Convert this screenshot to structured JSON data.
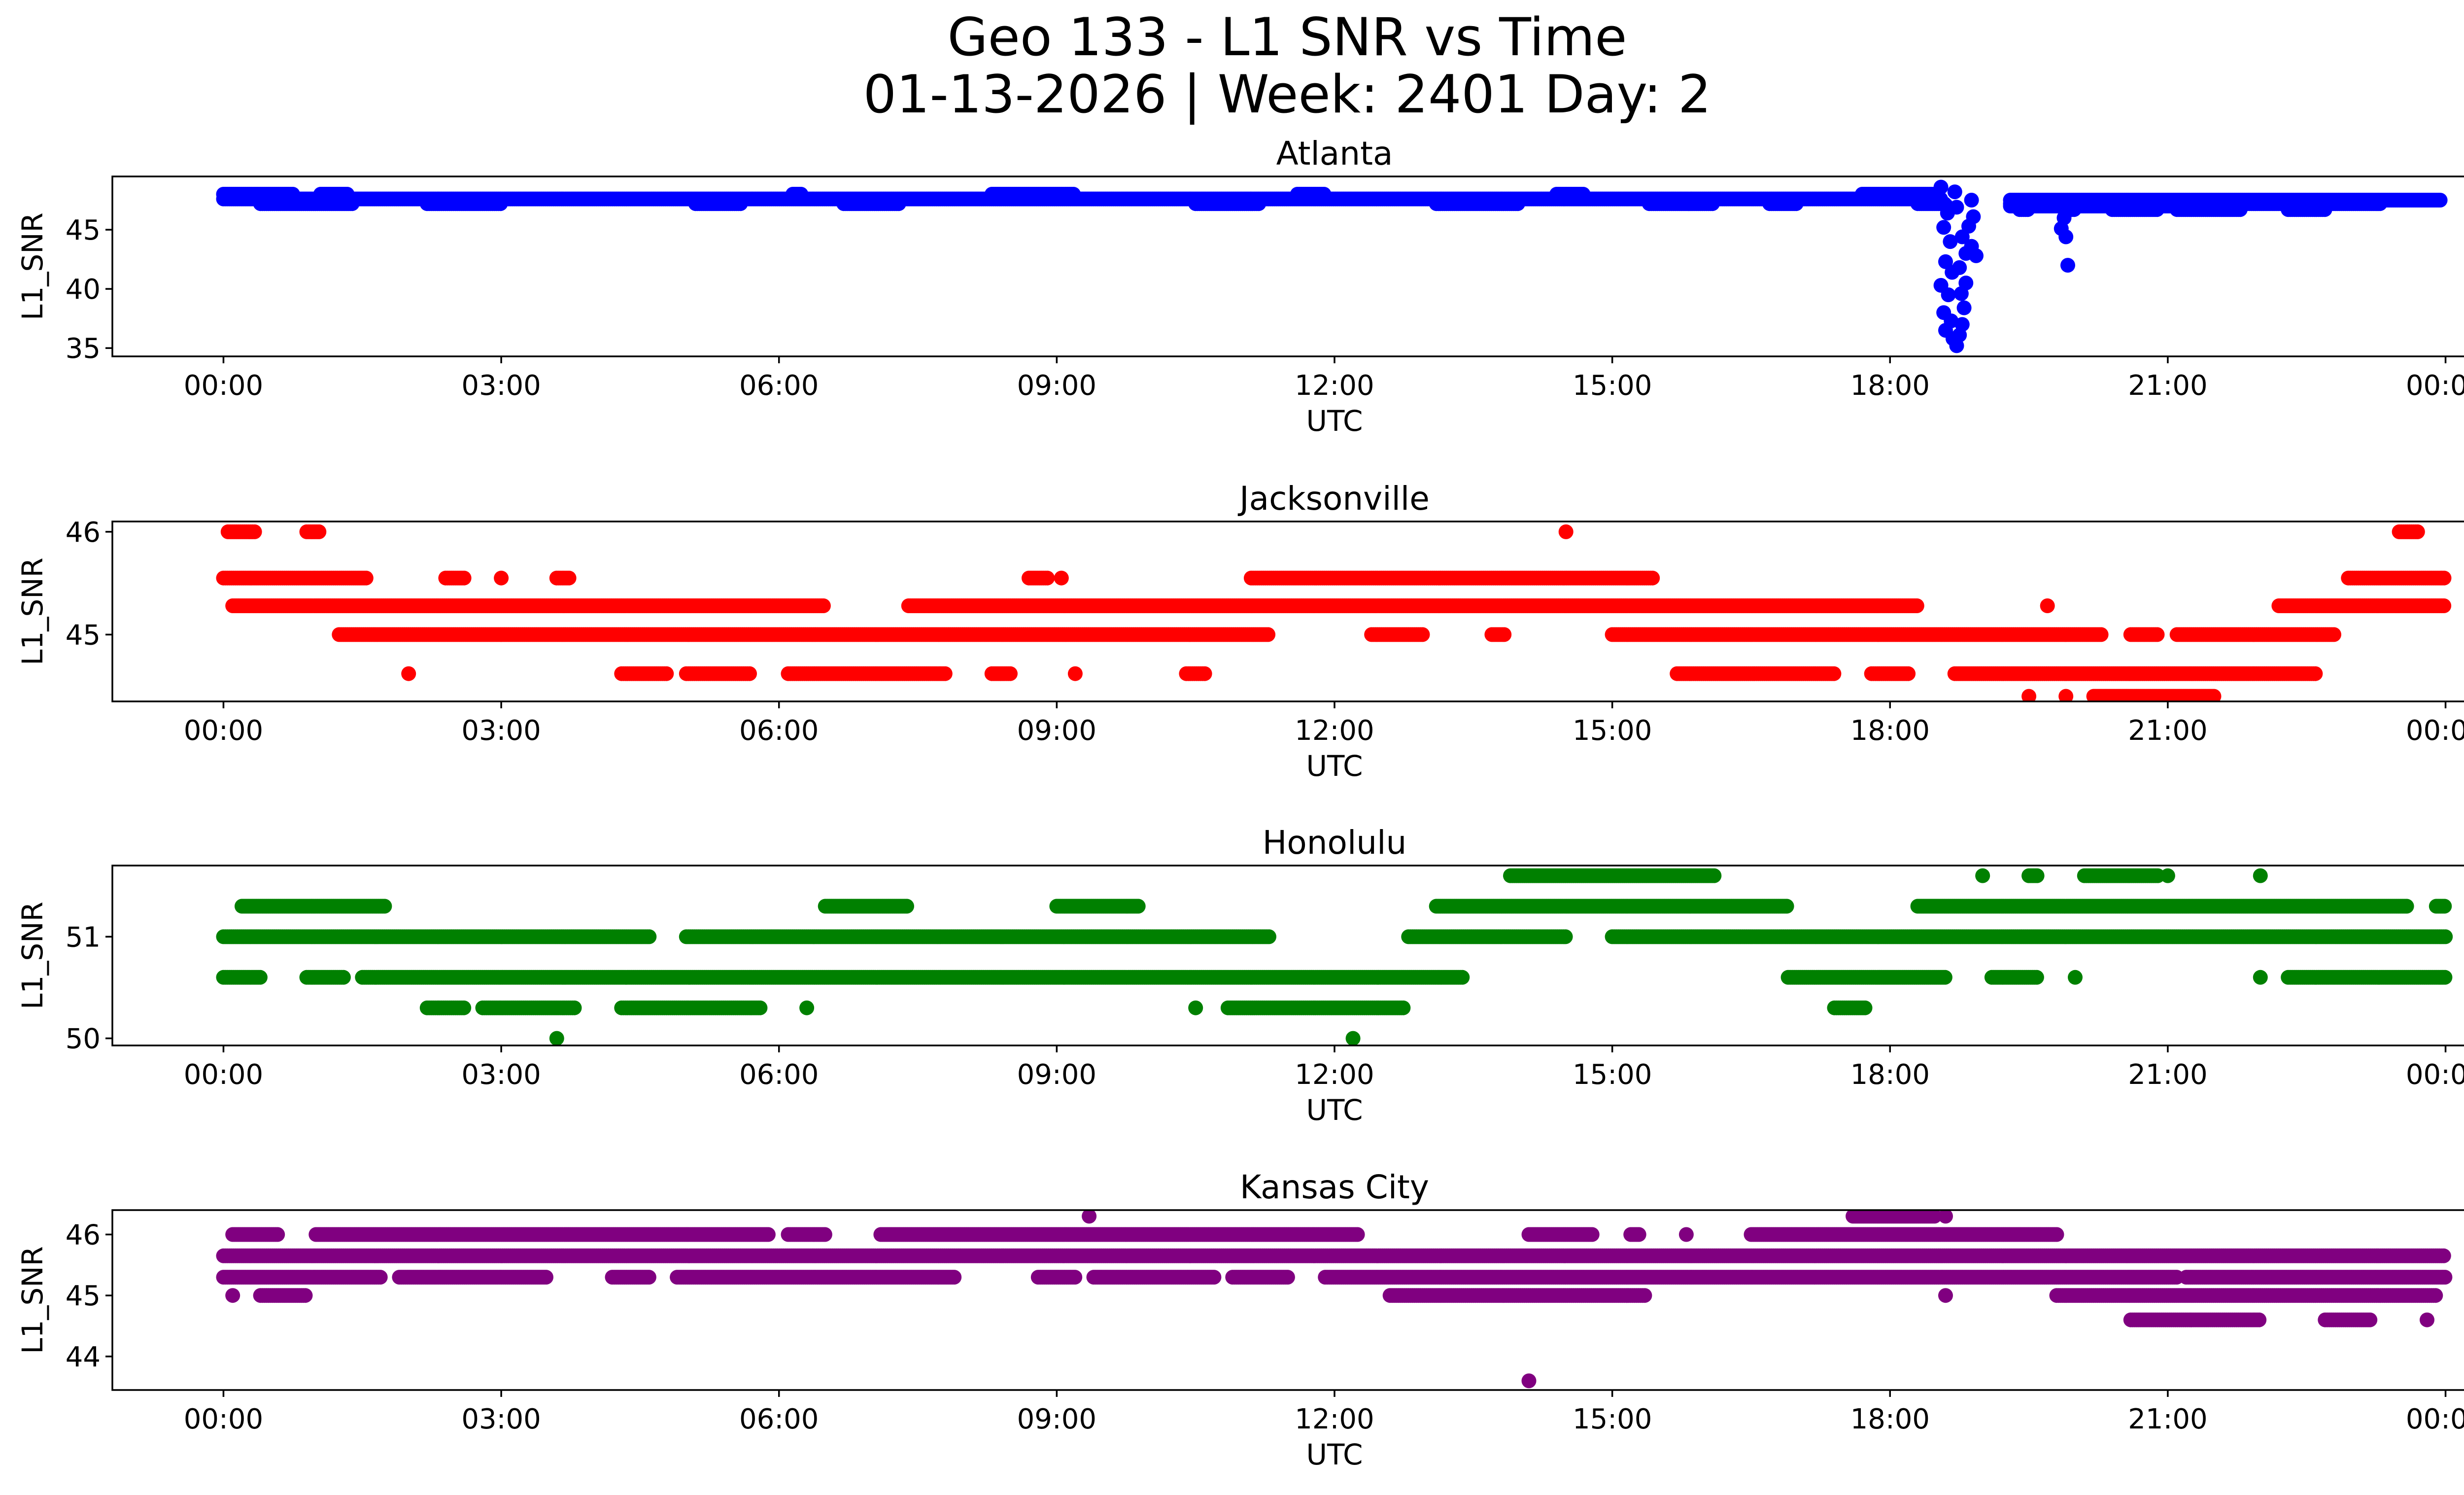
{
  "figure": {
    "title_line1": "Geo 133 - L1 SNR vs Time",
    "title_line2": "01-13-2026 | Week: 2401 Day: 2"
  },
  "chart_data": [
    {
      "type": "scatter",
      "title": "Atlanta",
      "xlabel": "UTC",
      "ylabel": "L1_SNR",
      "color": "#0000ff",
      "xlim": [
        -1.2,
        25.2
      ],
      "ylim": [
        34.3,
        49.5
      ],
      "xticks": [
        0,
        3,
        6,
        9,
        12,
        15,
        18,
        21,
        24
      ],
      "xticklabels": [
        "00:00",
        "03:00",
        "06:00",
        "09:00",
        "12:00",
        "15:00",
        "18:00",
        "21:00",
        "00:00"
      ],
      "yticks": [
        35,
        40,
        45
      ],
      "yticklabels": [
        "35",
        "40",
        "45"
      ],
      "bands": [
        {
          "value": 48.0,
          "ranges": [
            [
              0.0,
              0.75
            ],
            [
              1.05,
              1.35
            ],
            [
              6.15,
              6.25
            ],
            [
              8.3,
              9.2
            ],
            [
              11.6,
              11.9
            ],
            [
              14.4,
              14.7
            ],
            [
              17.7,
              18.5
            ]
          ]
        },
        {
          "value": 47.6,
          "ranges": [
            [
              0.0,
              18.55
            ]
          ]
        },
        {
          "value": 47.2,
          "ranges": [
            [
              0.4,
              1.4
            ],
            [
              2.2,
              3.0
            ],
            [
              5.1,
              5.6
            ],
            [
              6.7,
              7.3
            ],
            [
              10.5,
              11.2
            ],
            [
              13.1,
              14.0
            ],
            [
              15.4,
              16.1
            ],
            [
              16.7,
              17.0
            ],
            [
              18.3,
              18.6
            ],
            [
              19.3,
              21.0
            ],
            [
              21.4,
              23.3
            ]
          ]
        },
        {
          "value": 47.5,
          "ranges": [
            [
              19.3,
              23.95
            ]
          ]
        },
        {
          "value": 47.0,
          "ranges": [
            [
              19.3,
              21.8
            ]
          ]
        },
        {
          "value": 46.7,
          "ranges": [
            [
              19.4,
              19.5
            ],
            [
              19.9,
              20.0
            ],
            [
              20.4,
              20.9
            ],
            [
              21.1,
              21.8
            ],
            [
              22.3,
              22.7
            ]
          ]
        }
      ],
      "points": [
        [
          18.55,
          48.6
        ],
        [
          18.6,
          47.1
        ],
        [
          18.62,
          46.4
        ],
        [
          18.58,
          45.2
        ],
        [
          18.65,
          44.0
        ],
        [
          18.6,
          42.3
        ],
        [
          18.67,
          41.4
        ],
        [
          18.55,
          40.3
        ],
        [
          18.63,
          39.5
        ],
        [
          18.58,
          38.0
        ],
        [
          18.66,
          37.3
        ],
        [
          18.6,
          36.5
        ],
        [
          18.68,
          35.8
        ],
        [
          18.72,
          35.2
        ],
        [
          18.75,
          36.1
        ],
        [
          18.78,
          37.0
        ],
        [
          18.8,
          38.4
        ],
        [
          18.77,
          39.6
        ],
        [
          18.82,
          40.5
        ],
        [
          18.75,
          41.8
        ],
        [
          18.82,
          43.0
        ],
        [
          18.88,
          43.6
        ],
        [
          18.78,
          44.4
        ],
        [
          18.85,
          45.3
        ],
        [
          18.9,
          46.1
        ],
        [
          18.72,
          46.9
        ],
        [
          18.88,
          47.5
        ],
        [
          18.7,
          48.2
        ],
        [
          18.93,
          42.8
        ],
        [
          19.85,
          45.1
        ],
        [
          19.9,
          44.4
        ],
        [
          19.92,
          42.0
        ],
        [
          19.88,
          46.0
        ]
      ]
    },
    {
      "type": "scatter",
      "title": "Jacksonville",
      "xlabel": "UTC",
      "ylabel": "L1_SNR",
      "color": "#ff0000",
      "xlim": [
        -1.2,
        25.2
      ],
      "ylim": [
        44.35,
        46.1
      ],
      "xticks": [
        0,
        3,
        6,
        9,
        12,
        15,
        18,
        21,
        24
      ],
      "xticklabels": [
        "00:00",
        "03:00",
        "06:00",
        "09:00",
        "12:00",
        "15:00",
        "18:00",
        "21:00",
        "00:00"
      ],
      "yticks": [
        45,
        46
      ],
      "yticklabels": [
        "45",
        "46"
      ],
      "bands": [
        {
          "value": 46.0,
          "ranges": [
            [
              0.05,
              0.35
            ],
            [
              0.9,
              1.05
            ],
            [
              14.5,
              14.5
            ],
            [
              23.5,
              23.7
            ]
          ]
        },
        {
          "value": 45.55,
          "ranges": [
            [
              0.0,
              1.55
            ],
            [
              2.4,
              2.6
            ],
            [
              3.0,
              3.0
            ],
            [
              3.6,
              3.75
            ],
            [
              8.7,
              8.9
            ],
            [
              9.05,
              9.05
            ],
            [
              11.1,
              15.45
            ],
            [
              22.95,
              24.0
            ]
          ]
        },
        {
          "value": 45.28,
          "ranges": [
            [
              0.1,
              6.5
            ],
            [
              7.4,
              18.3
            ],
            [
              19.7,
              19.7
            ],
            [
              22.2,
              24.0
            ]
          ]
        },
        {
          "value": 45.0,
          "ranges": [
            [
              1.25,
              11.3
            ],
            [
              12.4,
              12.95
            ],
            [
              13.7,
              13.85
            ],
            [
              15.0,
              20.3
            ],
            [
              20.6,
              20.9
            ],
            [
              21.1,
              22.8
            ]
          ]
        },
        {
          "value": 44.62,
          "ranges": [
            [
              2.0,
              2.0
            ],
            [
              4.3,
              4.8
            ],
            [
              5.0,
              5.7
            ],
            [
              6.1,
              7.8
            ],
            [
              8.3,
              8.5
            ],
            [
              9.2,
              9.2
            ],
            [
              10.4,
              10.6
            ],
            [
              15.7,
              17.4
            ],
            [
              17.8,
              18.2
            ],
            [
              18.7,
              22.6
            ]
          ]
        },
        {
          "value": 44.4,
          "ranges": [
            [
              19.5,
              19.5
            ],
            [
              19.9,
              19.9
            ],
            [
              20.2,
              21.5
            ]
          ]
        }
      ],
      "points": []
    },
    {
      "type": "scatter",
      "title": "Honolulu",
      "xlabel": "UTC",
      "ylabel": "L1_SNR",
      "color": "#008000",
      "xlim": [
        -1.2,
        25.2
      ],
      "ylim": [
        49.93,
        51.7
      ],
      "xticks": [
        0,
        3,
        6,
        9,
        12,
        15,
        18,
        21,
        24
      ],
      "xticklabels": [
        "00:00",
        "03:00",
        "06:00",
        "09:00",
        "12:00",
        "15:00",
        "18:00",
        "21:00",
        "00:00"
      ],
      "yticks": [
        50,
        51
      ],
      "yticklabels": [
        "50",
        "51"
      ],
      "bands": [
        {
          "value": 51.6,
          "ranges": [
            [
              13.9,
              16.1
            ],
            [
              19.0,
              19.0
            ],
            [
              19.5,
              19.6
            ],
            [
              20.1,
              20.9
            ],
            [
              21.0,
              21.0
            ],
            [
              22.0,
              22.0
            ]
          ]
        },
        {
          "value": 51.3,
          "ranges": [
            [
              0.2,
              1.75
            ],
            [
              6.5,
              7.4
            ],
            [
              9.0,
              9.9
            ],
            [
              13.1,
              16.9
            ],
            [
              18.3,
              23.6
            ],
            [
              23.9,
              24.0
            ]
          ]
        },
        {
          "value": 51.0,
          "ranges": [
            [
              0.0,
              4.6
            ],
            [
              5.0,
              11.3
            ],
            [
              12.8,
              14.5
            ],
            [
              15.0,
              24.0
            ]
          ]
        },
        {
          "value": 50.6,
          "ranges": [
            [
              0.0,
              0.4
            ],
            [
              0.9,
              1.3
            ],
            [
              1.5,
              13.4
            ],
            [
              16.9,
              18.6
            ],
            [
              19.1,
              19.6
            ],
            [
              20.0,
              20.0
            ],
            [
              22.0,
              22.0
            ],
            [
              22.3,
              24.0
            ]
          ]
        },
        {
          "value": 50.3,
          "ranges": [
            [
              2.2,
              2.6
            ],
            [
              2.8,
              3.8
            ],
            [
              4.3,
              5.8
            ],
            [
              6.3,
              6.3
            ],
            [
              10.5,
              10.5
            ],
            [
              10.85,
              12.75
            ],
            [
              17.4,
              17.75
            ]
          ]
        },
        {
          "value": 50.0,
          "ranges": [
            [
              3.6,
              3.6
            ],
            [
              12.2,
              12.2
            ]
          ]
        }
      ],
      "points": []
    },
    {
      "type": "scatter",
      "title": "Kansas City",
      "xlabel": "UTC",
      "ylabel": "L1_SNR",
      "color": "#800080",
      "xlim": [
        -1.2,
        25.2
      ],
      "ylim": [
        43.45,
        46.4
      ],
      "xticks": [
        0,
        3,
        6,
        9,
        12,
        15,
        18,
        21,
        24
      ],
      "xticklabels": [
        "00:00",
        "03:00",
        "06:00",
        "09:00",
        "12:00",
        "15:00",
        "18:00",
        "21:00",
        "00:00"
      ],
      "yticks": [
        44,
        45,
        46
      ],
      "yticklabels": [
        "44",
        "45",
        "46"
      ],
      "bands": [
        {
          "value": 46.3,
          "ranges": [
            [
              9.35,
              9.35
            ],
            [
              17.6,
              18.5
            ],
            [
              18.6,
              18.6
            ]
          ]
        },
        {
          "value": 46.0,
          "ranges": [
            [
              0.1,
              0.6
            ],
            [
              1.0,
              5.9
            ],
            [
              6.1,
              6.5
            ],
            [
              7.1,
              12.25
            ],
            [
              14.1,
              14.8
            ],
            [
              15.2,
              15.3
            ],
            [
              15.8,
              15.8
            ],
            [
              16.5,
              19.8
            ]
          ]
        },
        {
          "value": 45.65,
          "ranges": [
            [
              0.0,
              24.0
            ]
          ]
        },
        {
          "value": 45.3,
          "ranges": [
            [
              0.0,
              1.7
            ],
            [
              1.9,
              3.5
            ],
            [
              4.2,
              4.6
            ],
            [
              4.9,
              7.9
            ],
            [
              8.8,
              9.2
            ],
            [
              9.4,
              10.7
            ],
            [
              10.9,
              11.5
            ],
            [
              11.9,
              21.1
            ],
            [
              21.2,
              24.0
            ]
          ]
        },
        {
          "value": 45.0,
          "ranges": [
            [
              0.1,
              0.1
            ],
            [
              0.4,
              0.9
            ],
            [
              12.6,
              15.35
            ],
            [
              18.6,
              18.6
            ],
            [
              19.8,
              23.9
            ]
          ]
        },
        {
          "value": 44.6,
          "ranges": [
            [
              20.6,
              22.0
            ],
            [
              22.7,
              23.2
            ],
            [
              23.8,
              23.8
            ]
          ]
        },
        {
          "value": 43.6,
          "ranges": [
            [
              14.1,
              14.1
            ]
          ]
        }
      ],
      "points": []
    }
  ]
}
